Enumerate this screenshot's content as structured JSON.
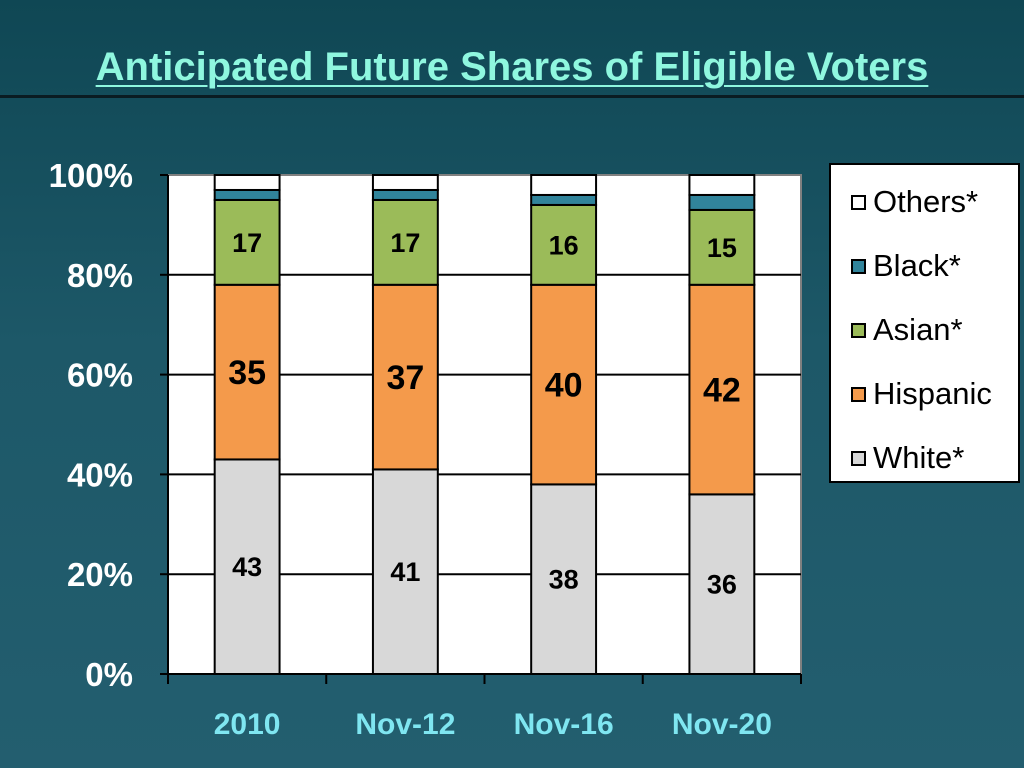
{
  "title": "Anticipated Future Shares of Eligible Voters",
  "chart_data": {
    "type": "bar",
    "stacked": true,
    "categories": [
      "2010",
      "Nov-12",
      "Nov-16",
      "Nov-20"
    ],
    "series": [
      {
        "name": "White*",
        "color": "#d8d8d8",
        "values": [
          43,
          41,
          38,
          36
        ]
      },
      {
        "name": "Hispanic",
        "color": "#f49a4b",
        "values": [
          35,
          37,
          40,
          42
        ]
      },
      {
        "name": "Asian*",
        "color": "#9bbb59",
        "values": [
          17,
          17,
          16,
          15
        ]
      },
      {
        "name": "Black*",
        "color": "#31849b",
        "values": [
          2,
          2,
          2,
          3
        ]
      },
      {
        "name": "Others*",
        "color": "#ffffff",
        "values": [
          3,
          3,
          4,
          4
        ]
      }
    ],
    "data_labels": {
      "White*": [
        "43",
        "41",
        "38",
        "36"
      ],
      "Hispanic": [
        "35",
        "37",
        "40",
        "42"
      ],
      "Asian*": [
        "17",
        "17",
        "16",
        "15"
      ]
    },
    "y_ticks": [
      "0%",
      "20%",
      "40%",
      "60%",
      "80%",
      "100%"
    ],
    "ylim": [
      0,
      100
    ],
    "grid": true,
    "legend_position": "right",
    "legend_order": [
      "Others*",
      "Black*",
      "Asian*",
      "Hispanic",
      "White*"
    ]
  }
}
